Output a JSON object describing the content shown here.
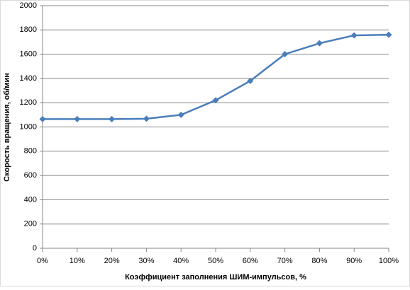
{
  "chart_data": {
    "type": "line",
    "x_label": "Коэффициент заполнения ШИМ-импульсов, %",
    "y_label": "Скорость вращения, об/мин",
    "categories": [
      "0%",
      "10%",
      "20%",
      "30%",
      "40%",
      "50%",
      "60%",
      "70%",
      "80%",
      "90%",
      "100%"
    ],
    "series": [
      {
        "color": "#4a7ebb",
        "values": [
          1065,
          1065,
          1065,
          1068,
          1100,
          1220,
          1380,
          1600,
          1690,
          1755,
          1760
        ]
      }
    ],
    "ylim": [
      0,
      2000
    ],
    "yticks": [
      0,
      200,
      400,
      600,
      800,
      1000,
      1200,
      1400,
      1600,
      1800,
      2000
    ],
    "grid": true
  }
}
